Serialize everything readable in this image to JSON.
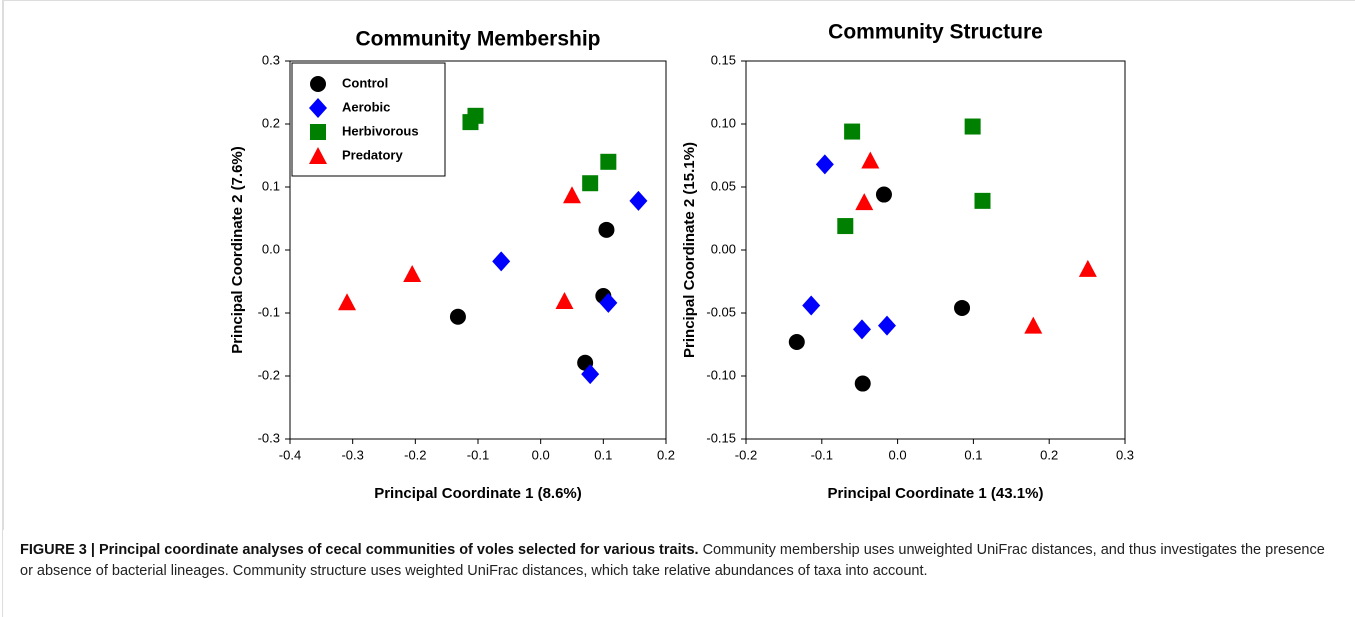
{
  "chart_data": [
    {
      "type": "scatter",
      "title": "Community Membership",
      "x_label": "Principal Coordinate 1 (8.6%)",
      "y_label": "Principal Coordinate 2 (7.6%)",
      "xlim": [
        -0.4,
        0.2
      ],
      "xticks": [
        -0.4,
        -0.3,
        -0.2,
        -0.1,
        {
          "value": 0,
          "label": "0.0"
        },
        0.1,
        0.2
      ],
      "ylim": [
        -0.3,
        0.3
      ],
      "yticks": [
        -0.3,
        -0.2,
        -0.1,
        {
          "value": 0,
          "label": "0.0"
        },
        0.1,
        0.2,
        0.3
      ],
      "legend": "upper left",
      "series": [
        {
          "name": "Control",
          "color": "#000000",
          "marker": "circle",
          "x": [
            0.105,
            -0.132,
            0.1,
            0.071
          ],
          "y": [
            0.032,
            -0.106,
            -0.073,
            -0.179
          ]
        },
        {
          "name": "Aerobic",
          "color": "#0000ff",
          "marker": "diamond",
          "x": [
            0.156,
            -0.063,
            0.108,
            0.079
          ],
          "y": [
            0.078,
            -0.018,
            -0.084,
            -0.197
          ]
        },
        {
          "name": "Herbivorous",
          "color": "#008000",
          "marker": "square",
          "x": [
            -0.104,
            -0.112,
            0.108,
            0.079
          ],
          "y": [
            0.213,
            0.203,
            0.14,
            0.106
          ]
        },
        {
          "name": "Predatory",
          "color": "#ff0000",
          "marker": "triangle",
          "x": [
            -0.309,
            -0.205,
            0.05,
            0.038
          ],
          "y": [
            -0.083,
            -0.038,
            0.087,
            -0.081
          ]
        }
      ]
    },
    {
      "type": "scatter",
      "title": "Community Structure",
      "x_label": "Principal Coordinate 1 (43.1%)",
      "y_label": "Principal Coordinate 2 (15.1%)",
      "xlim": [
        -0.2,
        0.3
      ],
      "xticks": [
        -0.2,
        -0.1,
        {
          "value": 0,
          "label": "0.0"
        },
        0.1,
        0.2,
        0.3
      ],
      "ylim": [
        -0.15,
        0.15
      ],
      "yticks": [
        -0.15,
        {
          "value": -0.1,
          "label": "-0.10"
        },
        -0.05,
        {
          "value": 0,
          "label": "0.00"
        },
        0.05,
        {
          "value": 0.1,
          "label": "0.10"
        },
        0.15
      ],
      "series": [
        {
          "color": "#000000",
          "marker": "circle",
          "x": [
            -0.018,
            -0.133,
            -0.046,
            0.085
          ],
          "y": [
            0.044,
            -0.073,
            -0.106,
            -0.046
          ]
        },
        {
          "color": "#0000ff",
          "marker": "diamond",
          "x": [
            -0.096,
            -0.114,
            -0.047,
            -0.014
          ],
          "y": [
            0.068,
            -0.044,
            -0.063,
            -0.06
          ]
        },
        {
          "color": "#008000",
          "marker": "square",
          "x": [
            -0.06,
            0.099,
            0.112,
            -0.069
          ],
          "y": [
            0.094,
            0.098,
            0.039,
            0.019
          ]
        },
        {
          "color": "#ff0000",
          "marker": "triangle",
          "x": [
            -0.036,
            -0.044,
            0.251,
            0.179
          ],
          "y": [
            0.071,
            0.038,
            -0.015,
            -0.06
          ]
        }
      ]
    }
  ],
  "caption": {
    "label": "FIGURE 3 | Principal coordinate analyses of cecal communities of voles selected for various traits.",
    "text": "Community membership uses unweighted UniFrac distances, and thus investigates the presence or absence of bacterial lineages. Community structure uses weighted UniFrac distances, which take relative abundances of taxa into account."
  }
}
